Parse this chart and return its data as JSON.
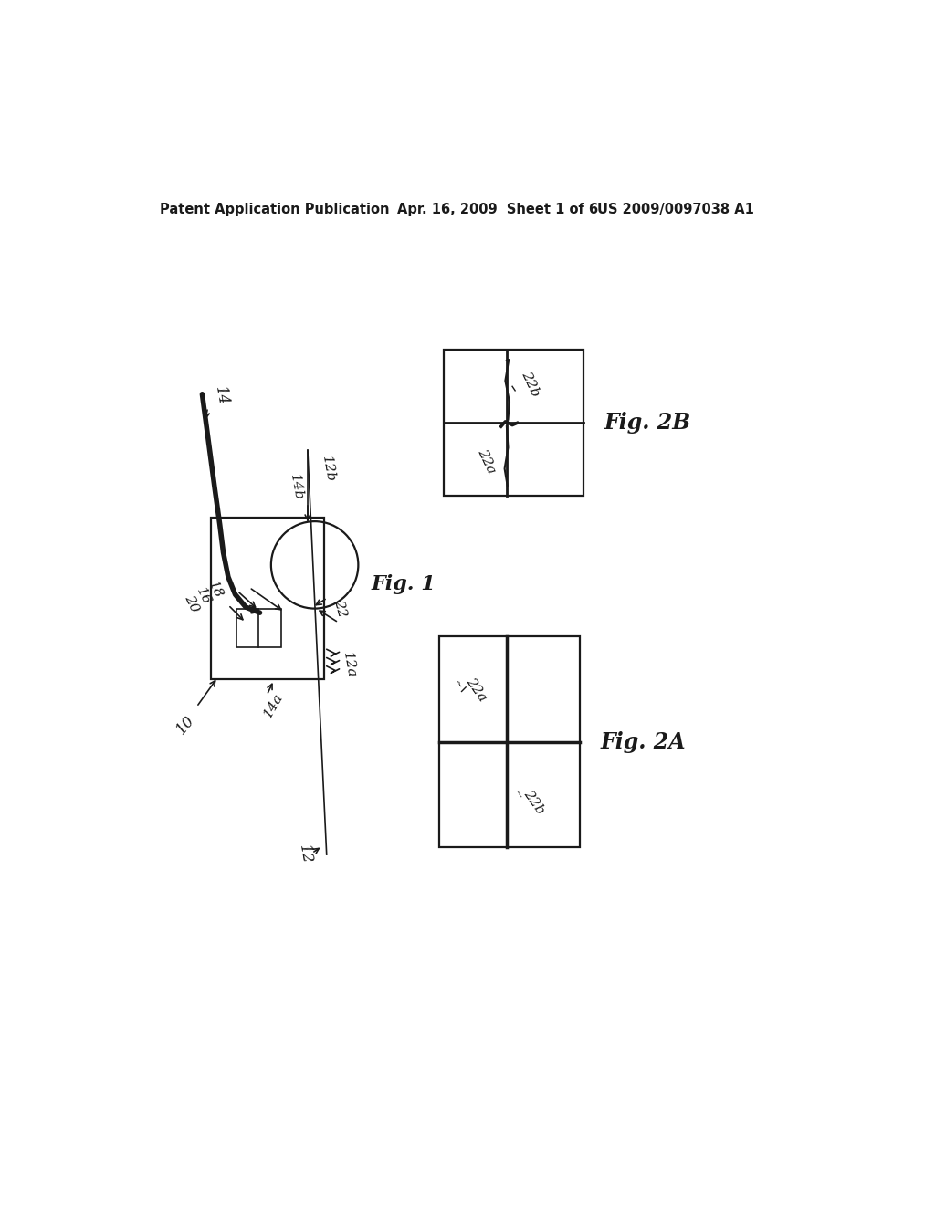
{
  "header_left": "Patent Application Publication",
  "header_center": "Apr. 16, 2009  Sheet 1 of 6",
  "header_right": "US 2009/0097038 A1",
  "fig1_label": "Fig. 1",
  "fig2a_label": "Fig. 2A",
  "fig2b_label": "Fig. 2B",
  "bg_color": "#ffffff",
  "draw_color": "#1a1a1a"
}
